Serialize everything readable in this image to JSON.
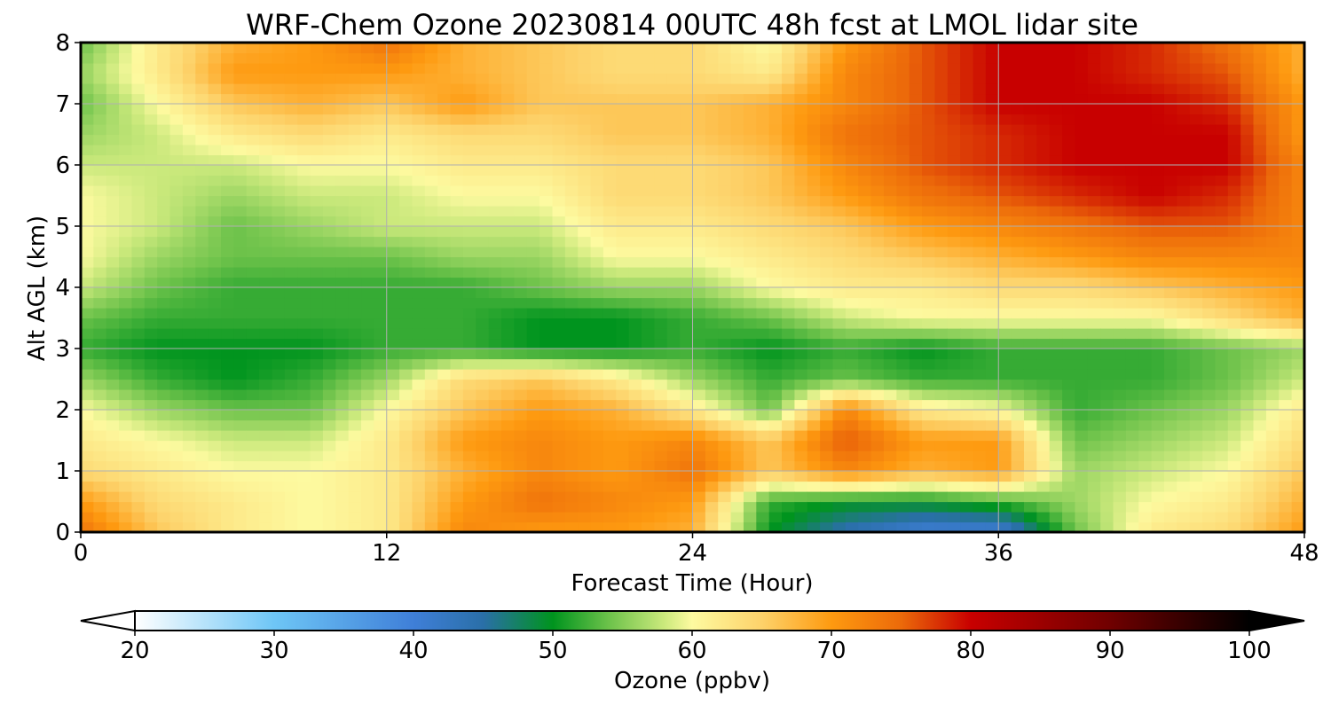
{
  "chart_data": {
    "type": "heatmap",
    "title": "WRF-Chem Ozone  20230814 00UTC 48h fcst at LMOL lidar site",
    "xlabel": "Forecast Time (Hour)",
    "ylabel": "Alt AGL (km)",
    "xlim": [
      0,
      48
    ],
    "ylim": [
      0,
      8
    ],
    "x_ticks": [
      0,
      12,
      24,
      36,
      48
    ],
    "y_ticks": [
      0,
      1,
      2,
      3,
      4,
      5,
      6,
      7,
      8
    ],
    "grid": true,
    "x": [
      0,
      3,
      6,
      9,
      12,
      15,
      18,
      21,
      24,
      27,
      30,
      33,
      36,
      39,
      42,
      45,
      48
    ],
    "y": [
      0,
      0.5,
      1,
      1.5,
      2,
      2.5,
      3,
      3.5,
      4,
      4.5,
      5,
      5.5,
      6,
      6.5,
      7,
      7.5,
      8
    ],
    "z_units": "ppbv",
    "z": [
      [
        74,
        66,
        62,
        60,
        62,
        72,
        70,
        70,
        68,
        50,
        44,
        40,
        40,
        54,
        62,
        64,
        70
      ],
      [
        70,
        64,
        62,
        60,
        62,
        70,
        74,
        72,
        70,
        52,
        50,
        50,
        52,
        56,
        60,
        62,
        68
      ],
      [
        64,
        62,
        60,
        60,
        62,
        68,
        72,
        70,
        74,
        66,
        72,
        68,
        70,
        56,
        58,
        60,
        66
      ],
      [
        62,
        60,
        58,
        58,
        62,
        70,
        72,
        70,
        72,
        66,
        76,
        70,
        70,
        54,
        56,
        58,
        64
      ],
      [
        60,
        56,
        54,
        54,
        60,
        66,
        70,
        68,
        62,
        54,
        72,
        62,
        60,
        52,
        54,
        56,
        62
      ],
      [
        56,
        52,
        50,
        52,
        56,
        64,
        66,
        62,
        56,
        52,
        54,
        52,
        52,
        52,
        52,
        54,
        58
      ],
      [
        52,
        50,
        50,
        50,
        52,
        52,
        50,
        50,
        52,
        50,
        52,
        50,
        52,
        52,
        52,
        54,
        56
      ],
      [
        54,
        52,
        52,
        52,
        52,
        52,
        50,
        50,
        52,
        54,
        58,
        60,
        60,
        60,
        60,
        64,
        68
      ],
      [
        58,
        54,
        52,
        52,
        52,
        52,
        54,
        56,
        56,
        60,
        62,
        62,
        64,
        64,
        66,
        68,
        70
      ],
      [
        60,
        56,
        54,
        54,
        54,
        56,
        56,
        60,
        60,
        62,
        64,
        66,
        68,
        70,
        72,
        72,
        72
      ],
      [
        60,
        58,
        54,
        56,
        58,
        58,
        58,
        62,
        62,
        64,
        66,
        70,
        72,
        74,
        76,
        76,
        72
      ],
      [
        60,
        58,
        56,
        58,
        58,
        60,
        60,
        64,
        64,
        66,
        70,
        74,
        76,
        78,
        80,
        78,
        72
      ],
      [
        58,
        58,
        58,
        60,
        60,
        62,
        62,
        64,
        64,
        66,
        72,
        76,
        78,
        80,
        80,
        80,
        72
      ],
      [
        56,
        58,
        62,
        64,
        62,
        64,
        64,
        66,
        66,
        68,
        74,
        76,
        78,
        80,
        80,
        80,
        70
      ],
      [
        54,
        60,
        66,
        68,
        66,
        70,
        66,
        66,
        66,
        68,
        72,
        76,
        80,
        80,
        80,
        78,
        70
      ],
      [
        56,
        62,
        70,
        70,
        70,
        68,
        66,
        64,
        64,
        62,
        72,
        76,
        80,
        80,
        78,
        76,
        68
      ],
      [
        54,
        62,
        68,
        70,
        74,
        68,
        66,
        64,
        64,
        60,
        70,
        76,
        80,
        80,
        78,
        74,
        68
      ]
    ],
    "colorbar": {
      "label": "Ozone  (ppbv)",
      "min": 20,
      "max": 100,
      "ticks": [
        20,
        30,
        40,
        50,
        60,
        70,
        80,
        90,
        100
      ],
      "extend": "both",
      "stops": [
        {
          "v": 20,
          "c": "#ffffff"
        },
        {
          "v": 30,
          "c": "#6ec6f6"
        },
        {
          "v": 40,
          "c": "#3f7fd8"
        },
        {
          "v": 45,
          "c": "#2a6fa8"
        },
        {
          "v": 50,
          "c": "#00941e"
        },
        {
          "v": 54,
          "c": "#6cc24a"
        },
        {
          "v": 58,
          "c": "#cbe97c"
        },
        {
          "v": 60,
          "c": "#fdfaa0"
        },
        {
          "v": 65,
          "c": "#fdd26a"
        },
        {
          "v": 70,
          "c": "#fe9a10"
        },
        {
          "v": 75,
          "c": "#ec6a0a"
        },
        {
          "v": 80,
          "c": "#c80000"
        },
        {
          "v": 90,
          "c": "#700000"
        },
        {
          "v": 100,
          "c": "#000000"
        }
      ]
    }
  }
}
